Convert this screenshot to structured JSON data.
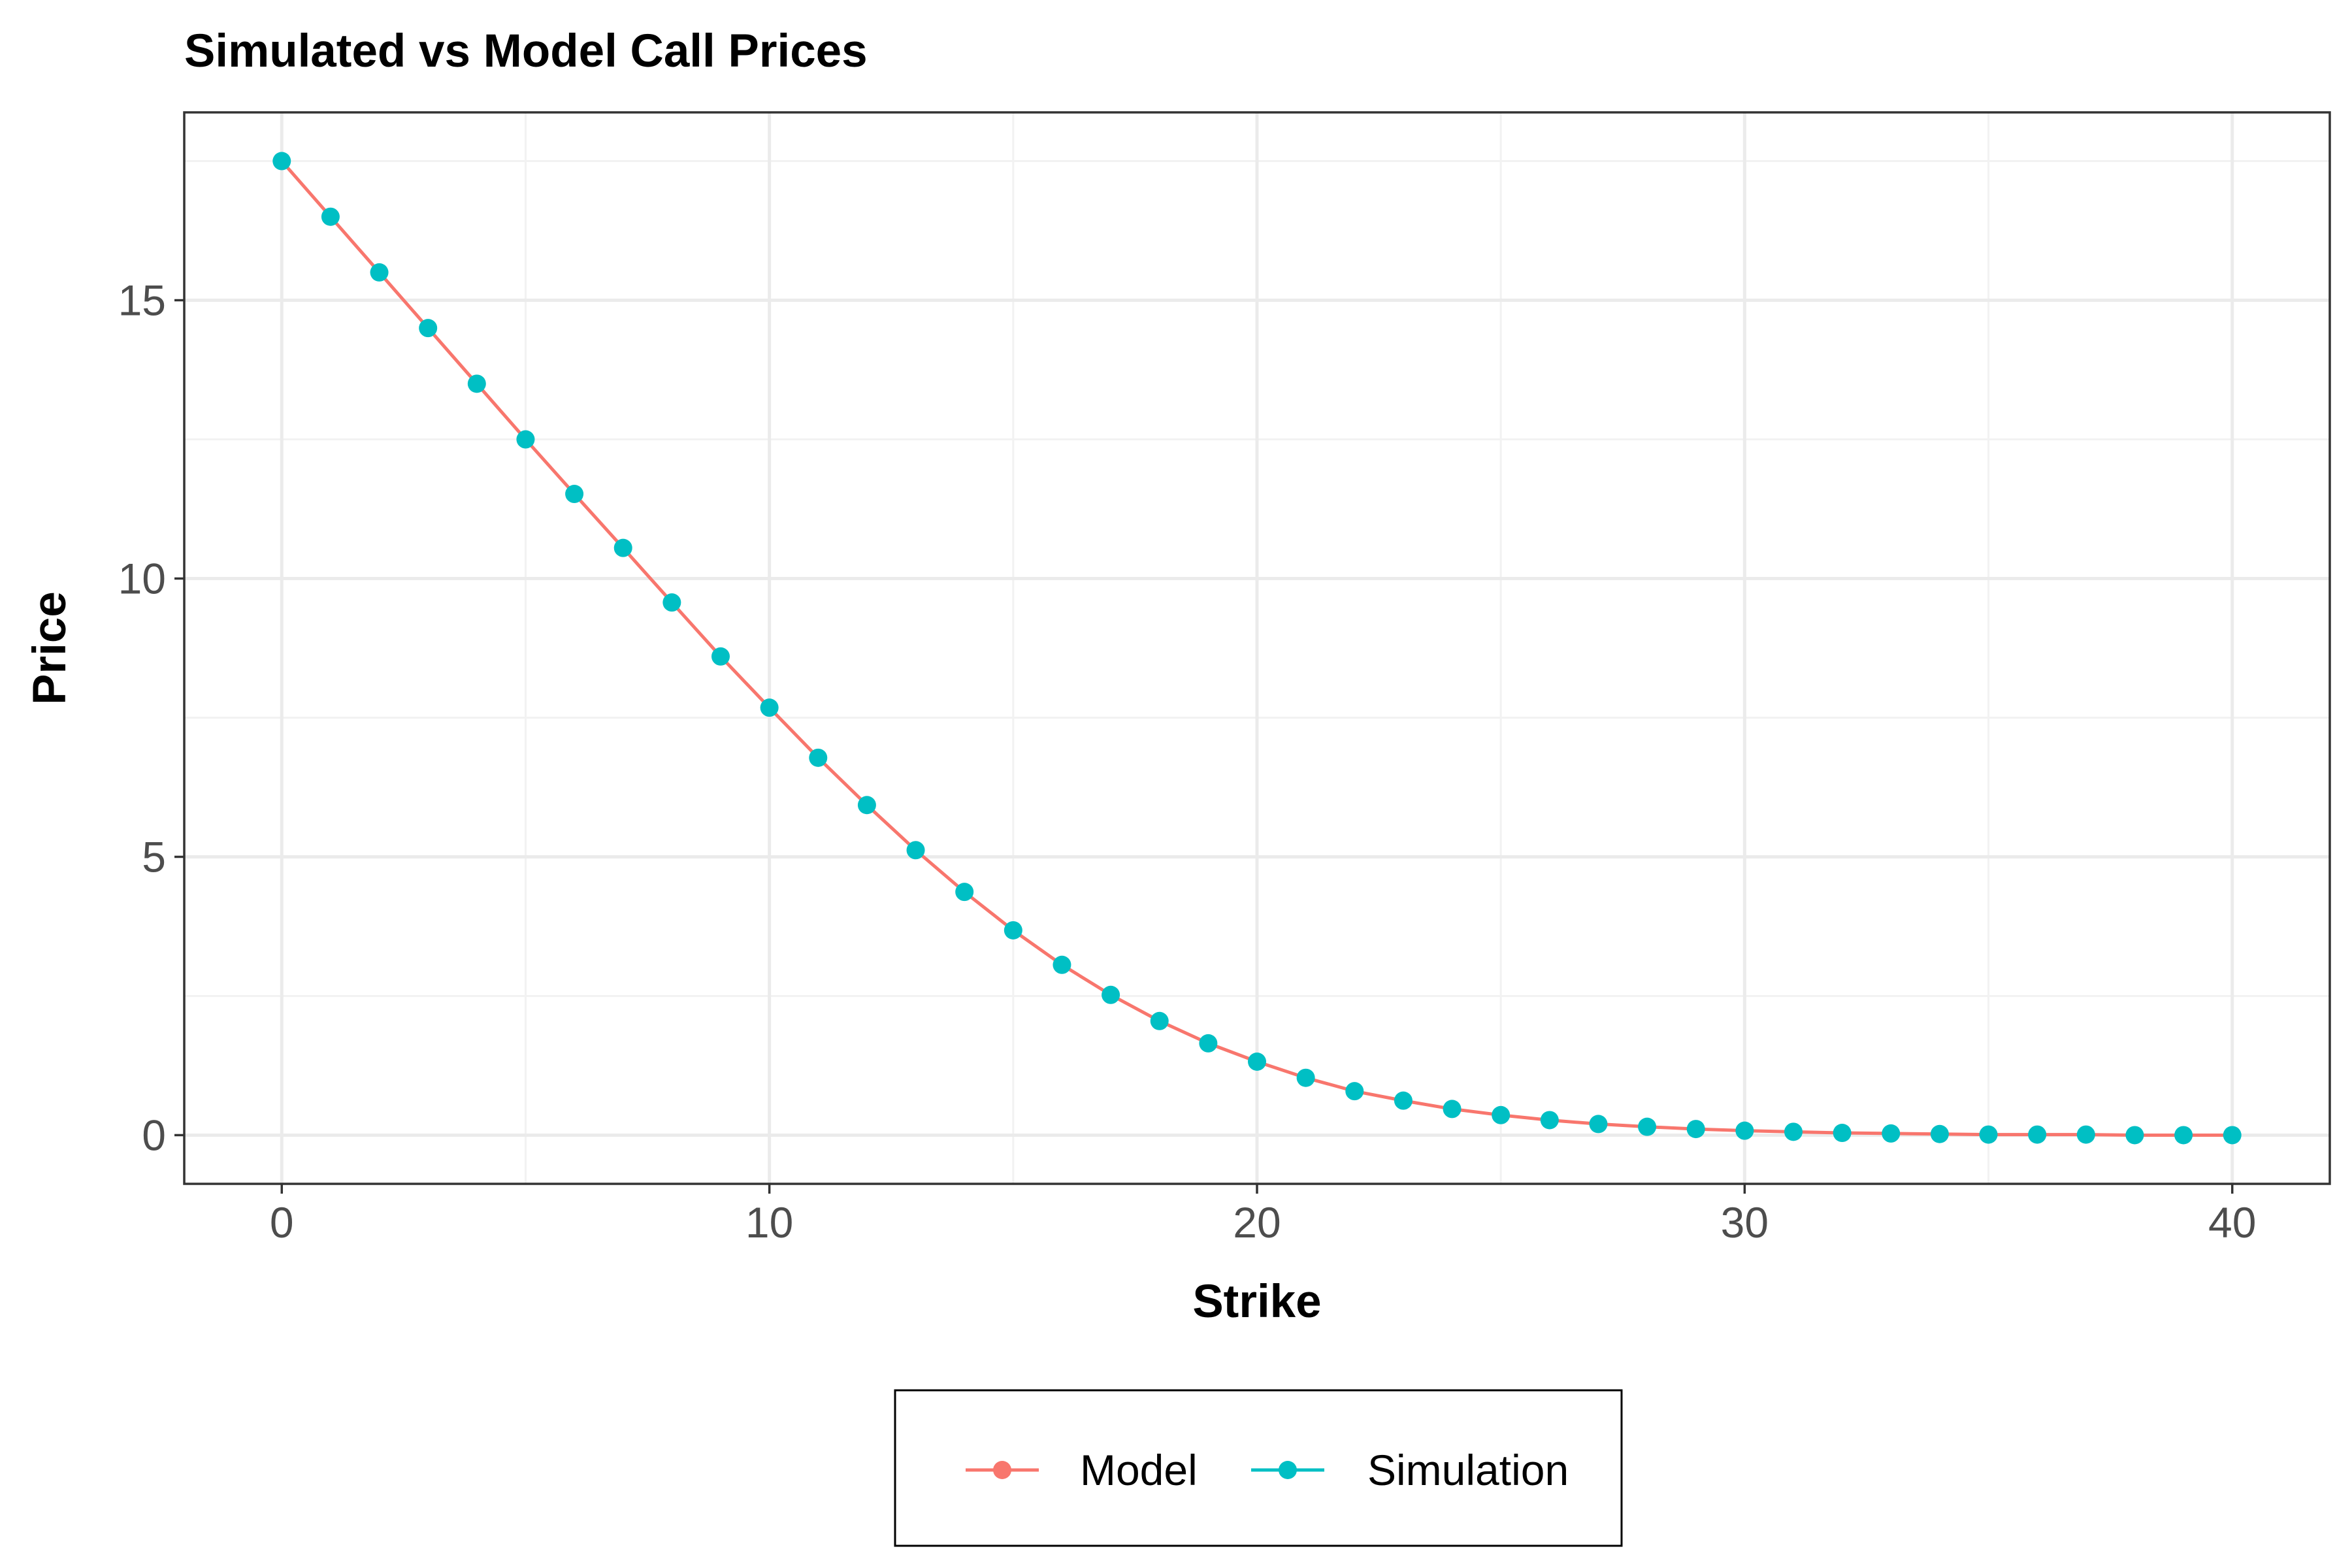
{
  "chart_data": {
    "type": "line",
    "title": "Simulated vs Model Call Prices",
    "xlabel": "Strike",
    "ylabel": "Price",
    "xlim": [
      -2,
      42
    ],
    "ylim": [
      -0.875,
      18.375
    ],
    "xticks": [
      0,
      10,
      20,
      30,
      40
    ],
    "yticks": [
      0,
      5,
      10,
      15
    ],
    "grid": true,
    "legend_position": "bottom",
    "x": [
      0,
      1,
      2,
      3,
      4,
      5,
      6,
      7,
      8,
      9,
      10,
      11,
      12,
      13,
      14,
      15,
      16,
      17,
      18,
      19,
      20,
      21,
      22,
      23,
      24,
      25,
      26,
      27,
      28,
      29,
      30,
      31,
      32,
      33,
      34,
      35,
      36,
      37,
      38,
      39,
      40
    ],
    "series": [
      {
        "name": "Model",
        "color": "#f8766d",
        "mode": "line",
        "values": [
          17.5,
          16.5,
          15.5,
          14.5,
          13.5,
          12.5,
          11.52,
          10.55,
          9.57,
          8.6,
          7.68,
          6.78,
          5.93,
          5.12,
          4.37,
          3.68,
          3.06,
          2.52,
          2.05,
          1.65,
          1.32,
          1.03,
          0.79,
          0.62,
          0.47,
          0.36,
          0.27,
          0.2,
          0.15,
          0.11,
          0.08,
          0.06,
          0.04,
          0.03,
          0.02,
          0.01,
          0.01,
          0.01,
          0,
          0,
          0
        ]
      },
      {
        "name": "Simulation",
        "color": "#00bfc4",
        "mode": "points",
        "values": [
          17.5,
          16.5,
          15.5,
          14.5,
          13.5,
          12.5,
          11.52,
          10.55,
          9.57,
          8.6,
          7.68,
          6.78,
          5.93,
          5.12,
          4.37,
          3.68,
          3.06,
          2.52,
          2.05,
          1.65,
          1.32,
          1.03,
          0.79,
          0.62,
          0.47,
          0.36,
          0.27,
          0.2,
          0.15,
          0.11,
          0.08,
          0.06,
          0.04,
          0.03,
          0.02,
          0.01,
          0.01,
          0.01,
          0,
          0,
          0
        ]
      }
    ]
  }
}
